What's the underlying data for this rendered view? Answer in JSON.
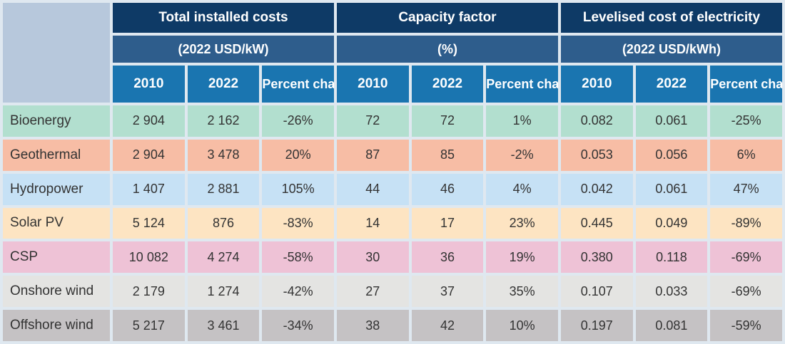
{
  "colors": {
    "header_dark": "#0e3a66",
    "header_mid": "#2e5d8c",
    "header_year": "#1a75b0",
    "corner": "#b7c8dc",
    "background": "#dfe8f0"
  },
  "chart_data": {
    "type": "table",
    "groups": [
      {
        "title": "Total installed costs",
        "unit": "(2022 USD/kW)"
      },
      {
        "title": "Capacity factor",
        "unit": "(%)"
      },
      {
        "title": "Levelised cost of electricity",
        "unit": "(2022 USD/kWh)"
      }
    ],
    "subheaders": [
      "2010",
      "2022",
      "Percent change"
    ],
    "rows": [
      {
        "label": "Bioenergy",
        "color": "#b2dfcf",
        "values": [
          "2 904",
          "2 162",
          "-26%",
          "72",
          "72",
          "1%",
          "0.082",
          "0.061",
          "-25%"
        ]
      },
      {
        "label": "Geothermal",
        "color": "#f7bda5",
        "values": [
          "2 904",
          "3 478",
          "20%",
          "87",
          "85",
          "-2%",
          "0.053",
          "0.056",
          "6%"
        ]
      },
      {
        "label": "Hydropower",
        "color": "#c6e1f5",
        "values": [
          "1 407",
          "2 881",
          "105%",
          "44",
          "46",
          "4%",
          "0.042",
          "0.061",
          "47%"
        ]
      },
      {
        "label": "Solar PV",
        "color": "#fde4c2",
        "values": [
          "5 124",
          "876",
          "-83%",
          "14",
          "17",
          "23%",
          "0.445",
          "0.049",
          "-89%"
        ]
      },
      {
        "label": "CSP",
        "color": "#eec2d6",
        "values": [
          "10 082",
          "4 274",
          "-58%",
          "30",
          "36",
          "19%",
          "0.380",
          "0.118",
          "-69%"
        ]
      },
      {
        "label": "Onshore wind",
        "color": "#e4e4e2",
        "values": [
          "2 179",
          "1 274",
          "-42%",
          "27",
          "37",
          "35%",
          "0.107",
          "0.033",
          "-69%"
        ]
      },
      {
        "label": "Offshore wind",
        "color": "#c5c2c4",
        "values": [
          "5 217",
          "3 461",
          "-34%",
          "38",
          "42",
          "10%",
          "0.197",
          "0.081",
          "-59%"
        ]
      }
    ]
  }
}
